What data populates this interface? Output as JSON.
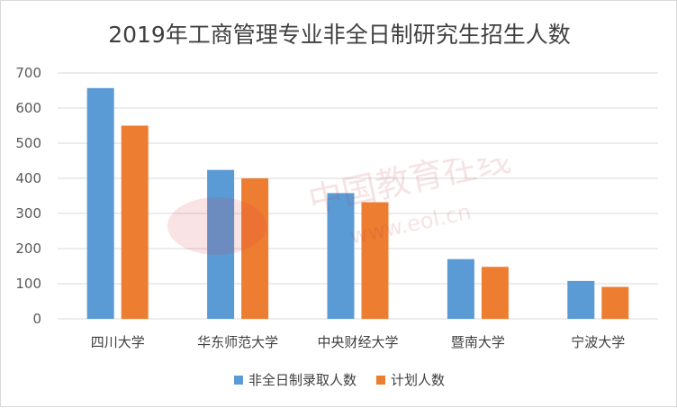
{
  "chart_data": {
    "type": "bar",
    "title": "2019年工商管理专业非全日制研究生招生人数",
    "categories": [
      "四川大学",
      "华东师范大学",
      "中央财经大学",
      "暨南大学",
      "宁波大学"
    ],
    "series": [
      {
        "name": "非全日制录取人数",
        "color": "#5b9bd5",
        "values": [
          657,
          424,
          358,
          170,
          108
        ]
      },
      {
        "name": "计划人数",
        "color": "#ed7d31",
        "values": [
          550,
          400,
          332,
          148,
          91
        ]
      }
    ],
    "yticks": [
      "0",
      "100",
      "200",
      "300",
      "400",
      "500",
      "600",
      "700"
    ],
    "ylim": [
      0,
      700
    ],
    "grid": true,
    "legend_position": "bottom"
  },
  "watermark": {
    "text": "中国教育在线",
    "subtext": "www.eol.cn"
  }
}
